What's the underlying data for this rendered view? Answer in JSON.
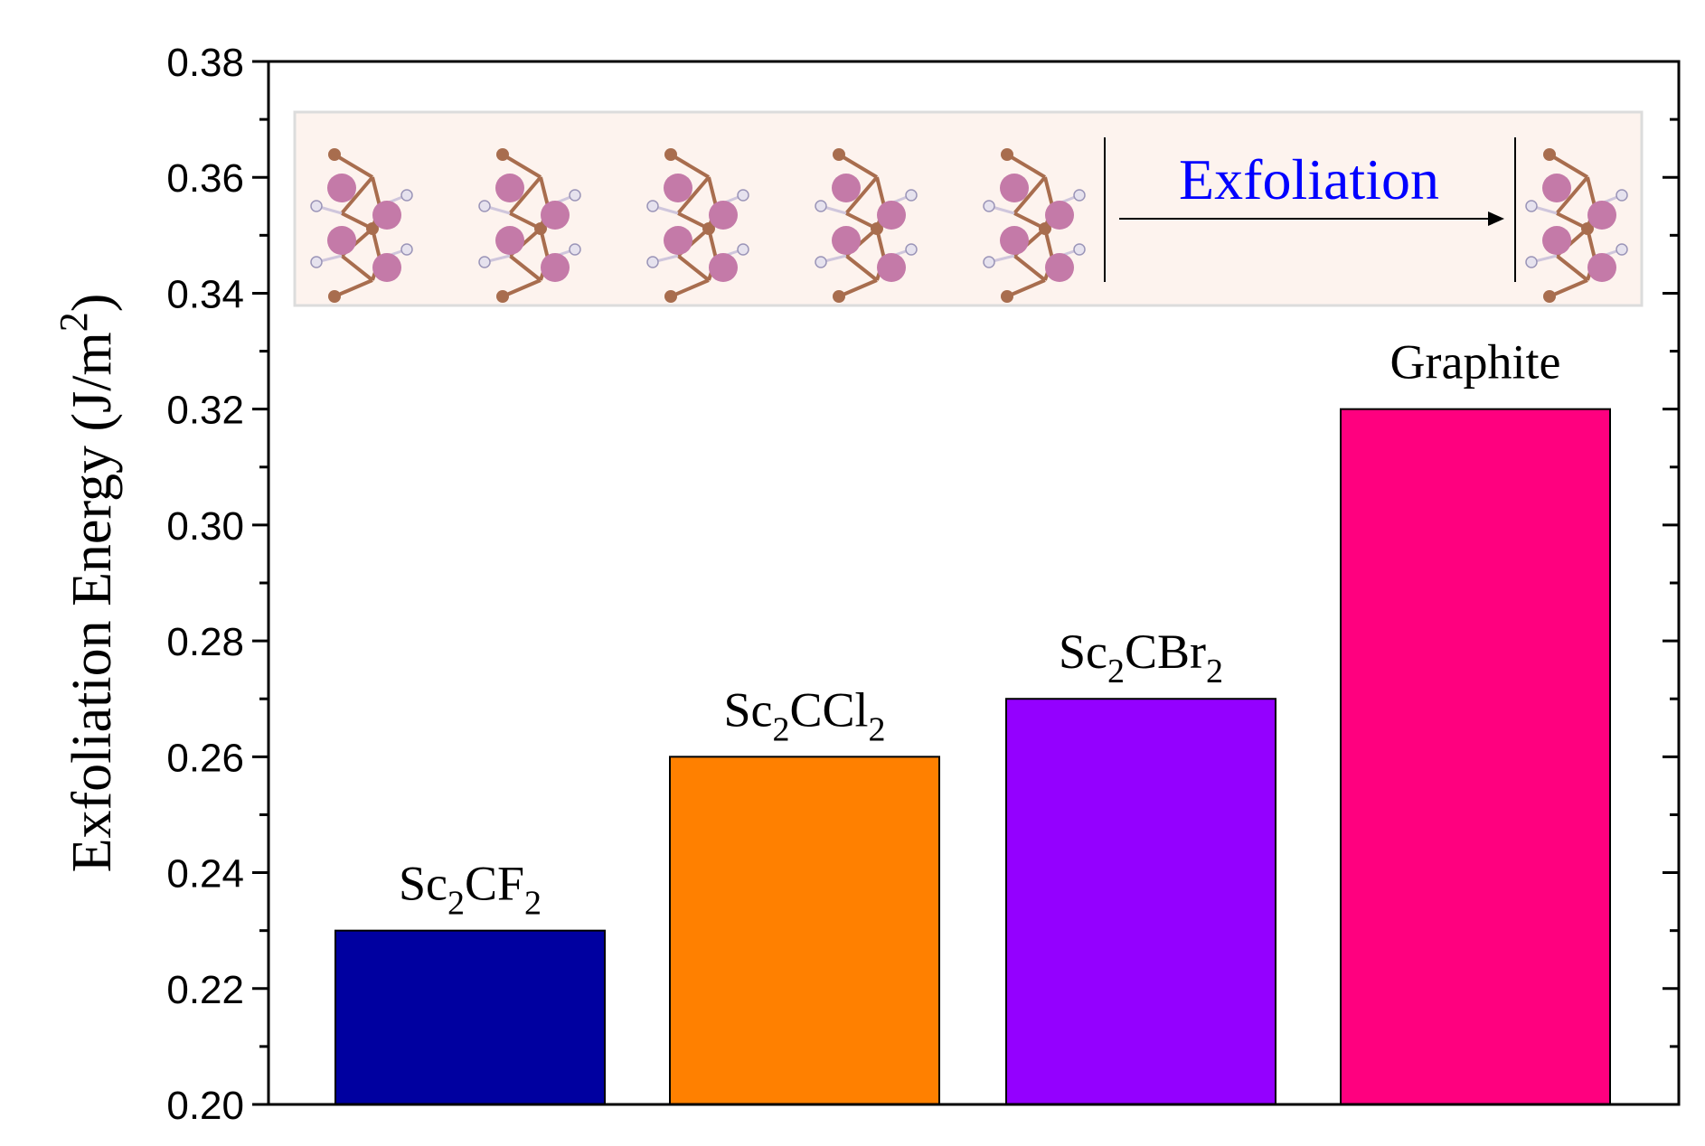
{
  "chart_data": {
    "type": "bar",
    "title": "",
    "xlabel": "",
    "ylabel": {
      "main": "Exfoliation Energy (J/m",
      "sup": "2",
      "close": ")"
    },
    "ylim": [
      0.2,
      0.38
    ],
    "yticks": [
      "0.20",
      "0.22",
      "0.24",
      "0.26",
      "0.28",
      "0.30",
      "0.32",
      "0.34",
      "0.36",
      "0.38"
    ],
    "ytick_values": [
      0.2,
      0.22,
      0.24,
      0.26,
      0.28,
      0.3,
      0.32,
      0.34,
      0.36,
      0.38
    ],
    "grid": false,
    "categories": [
      {
        "name": "Sc2CF2",
        "base": "Sc",
        "s1": "2",
        "mid": "CF",
        "s2": "2"
      },
      {
        "name": "Sc2CCl2",
        "base": "Sc",
        "s1": "2",
        "mid": "CCl",
        "s2": "2"
      },
      {
        "name": "Sc2CBr2",
        "base": "Sc",
        "s1": "2",
        "mid": "CBr",
        "s2": "2"
      },
      {
        "name": "Graphite",
        "base": "Graphite",
        "s1": "",
        "mid": "",
        "s2": ""
      }
    ],
    "values": [
      0.23,
      0.26,
      0.27,
      0.32
    ],
    "colors": [
      "#0000a0",
      "#ff8000",
      "#9400ff",
      "#ff007f"
    ],
    "inset": {
      "label": "Exfoliation",
      "label_color": "#0000ff",
      "background": "#fdf3ee"
    }
  }
}
